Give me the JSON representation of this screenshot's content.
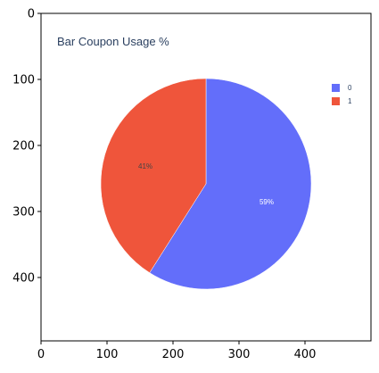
{
  "chart_data": {
    "type": "pie",
    "title": "Bar Coupon Usage %",
    "categories": [
      "0",
      "1"
    ],
    "values": [
      59,
      41
    ],
    "labels": [
      "59%",
      "41%"
    ],
    "colors": [
      "#636efa",
      "#ef553b"
    ],
    "label_colors": [
      "#ffffff",
      "#444444"
    ],
    "start_angle_deg": 0,
    "direction": "clockwise",
    "legend_position": "top-right"
  },
  "image_axes": {
    "x_ticks": [
      "0",
      "100",
      "200",
      "300",
      "400"
    ],
    "y_ticks": [
      "0",
      "100",
      "200",
      "300",
      "400"
    ]
  }
}
